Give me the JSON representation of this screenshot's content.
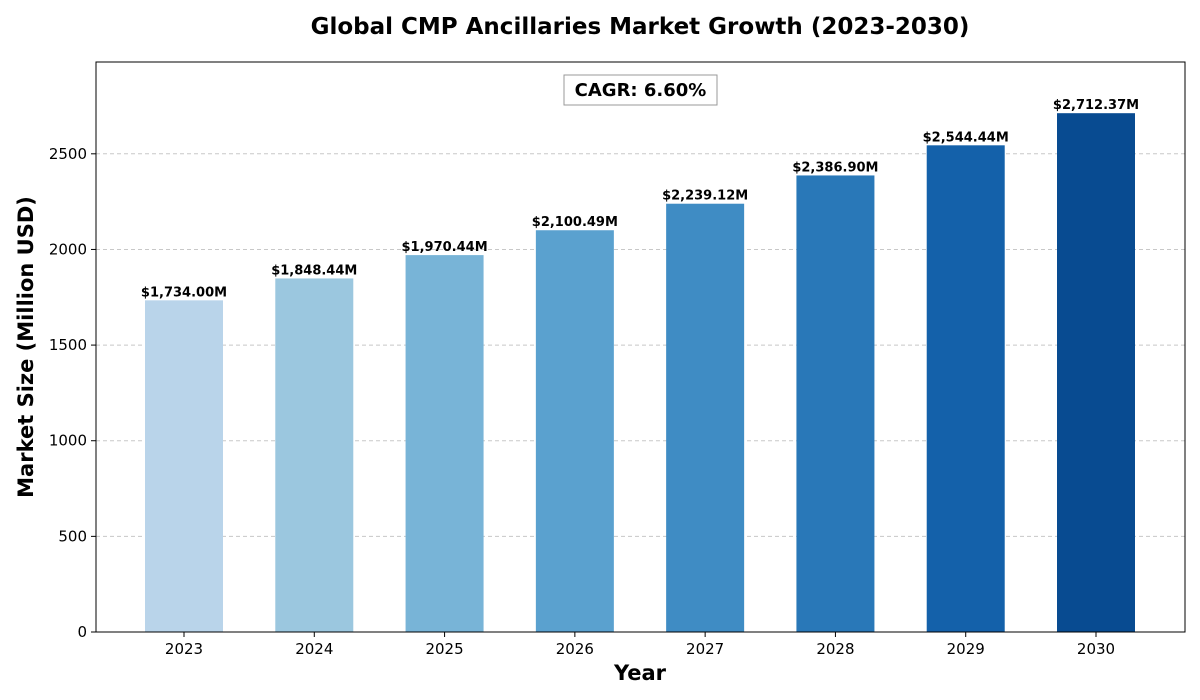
{
  "chart_data": {
    "type": "bar",
    "title": "Global CMP Ancillaries Market Growth (2023-2030)",
    "xlabel": "Year",
    "ylabel": "Market Size (Million USD)",
    "categories": [
      "2023",
      "2024",
      "2025",
      "2026",
      "2027",
      "2028",
      "2029",
      "2030"
    ],
    "values": [
      1734.0,
      1848.44,
      1970.44,
      2100.49,
      2239.12,
      2386.9,
      2544.44,
      2712.37
    ],
    "value_labels": [
      "$1,734.00M",
      "$1,848.44M",
      "$1,970.44M",
      "$2,100.49M",
      "$2,239.12M",
      "$2,386.90M",
      "$2,544.44M",
      "$2,712.37M"
    ],
    "bar_colors": [
      "#b9d4ea",
      "#9bc7df",
      "#78b4d7",
      "#5aa1cf",
      "#3f8cc4",
      "#2978b8",
      "#1461aa",
      "#084b91"
    ],
    "ylim": [
      0,
      2980
    ],
    "yticks": [
      0,
      500,
      1000,
      1500,
      2000,
      2500
    ],
    "grid": "y-dashed",
    "annotation": "CAGR: 6.60%"
  }
}
